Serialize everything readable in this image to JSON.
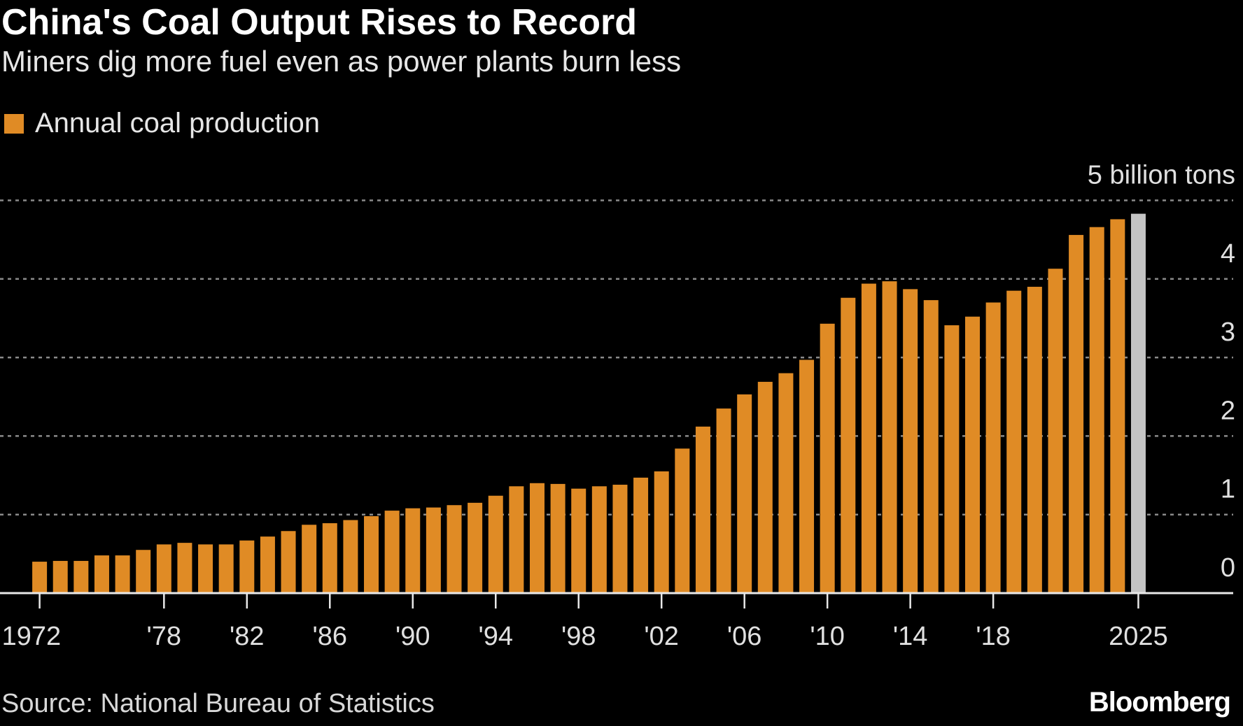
{
  "header": {
    "title": "China's Coal Output Rises to Record",
    "subtitle": "Miners dig more fuel even as power plants burn less"
  },
  "footer": {
    "source": "Source: National Bureau of Statistics",
    "logo": "Bloomberg"
  },
  "colors": {
    "bar": "#e08b25",
    "highlight": "#c4c4c4",
    "background": "#000000",
    "grid": "#8a8a8a"
  },
  "chart_data": {
    "type": "bar",
    "title": "China's Coal Output Rises to Record",
    "subtitle": "Miners dig more fuel even as power plants burn less",
    "legend": [
      {
        "name": "Annual coal production",
        "color": "#e08b25"
      }
    ],
    "legend_placement": "top-left",
    "unit_label": "5 billion tons",
    "ylim": [
      0,
      5
    ],
    "yticks": [
      "0",
      "1",
      "2",
      "3",
      "4"
    ],
    "grid": true,
    "y_axis_side": "right",
    "x_tick_years": [
      1972,
      1978,
      1982,
      1986,
      1990,
      1994,
      1998,
      2002,
      2006,
      2010,
      2014,
      2018,
      2025
    ],
    "x_tick_labels": [
      "1972",
      "'78",
      "'82",
      "'86",
      "'90",
      "'94",
      "'98",
      "'02",
      "'06",
      "'10",
      "'14",
      "'18",
      "2025"
    ],
    "highlight_year": 2025,
    "categories": [
      1972,
      1973,
      1974,
      1975,
      1976,
      1977,
      1978,
      1979,
      1980,
      1981,
      1982,
      1983,
      1984,
      1985,
      1986,
      1987,
      1988,
      1989,
      1990,
      1991,
      1992,
      1993,
      1994,
      1995,
      1996,
      1997,
      1998,
      1999,
      2000,
      2001,
      2002,
      2003,
      2004,
      2005,
      2006,
      2007,
      2008,
      2009,
      2010,
      2011,
      2012,
      2013,
      2014,
      2015,
      2016,
      2017,
      2018,
      2019,
      2020,
      2021,
      2022,
      2023,
      2024,
      2025
    ],
    "values": [
      0.4,
      0.41,
      0.41,
      0.48,
      0.48,
      0.55,
      0.62,
      0.64,
      0.62,
      0.62,
      0.67,
      0.72,
      0.79,
      0.87,
      0.89,
      0.93,
      0.98,
      1.05,
      1.08,
      1.09,
      1.12,
      1.15,
      1.24,
      1.36,
      1.4,
      1.39,
      1.33,
      1.36,
      1.38,
      1.47,
      1.55,
      1.84,
      2.12,
      2.35,
      2.53,
      2.69,
      2.8,
      2.97,
      3.43,
      3.76,
      3.94,
      3.97,
      3.87,
      3.73,
      3.41,
      3.52,
      3.7,
      3.85,
      3.9,
      4.13,
      4.56,
      4.66,
      4.76,
      4.83
    ]
  }
}
